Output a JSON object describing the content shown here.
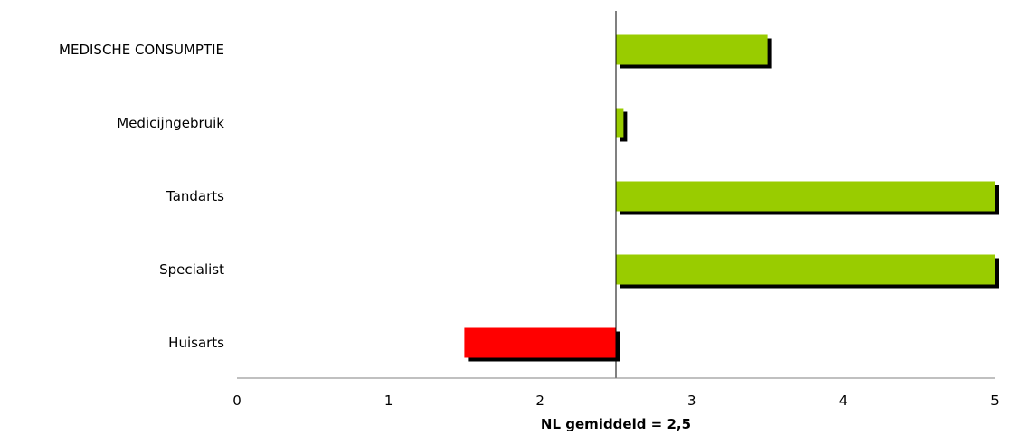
{
  "chart_data": {
    "type": "bar",
    "orientation": "horizontal",
    "title": "",
    "xlabel": "NL gemiddeld = 2,5",
    "ylabel": "",
    "xlim": [
      0,
      5
    ],
    "xticks": [
      "0",
      "1",
      "2",
      "3",
      "4",
      "5"
    ],
    "baseline": 2.5,
    "grid": false,
    "legend": "none",
    "categories": [
      "MEDISCHE CONSUMPTIE",
      "Medicijngebruik",
      "Tandarts",
      "Specialist",
      "Huisarts"
    ],
    "values": [
      3.5,
      2.55,
      5,
      5,
      1.5
    ],
    "colors": {
      "above": "#99CC00",
      "below": "#FF0000",
      "shadow": "#000000"
    }
  }
}
